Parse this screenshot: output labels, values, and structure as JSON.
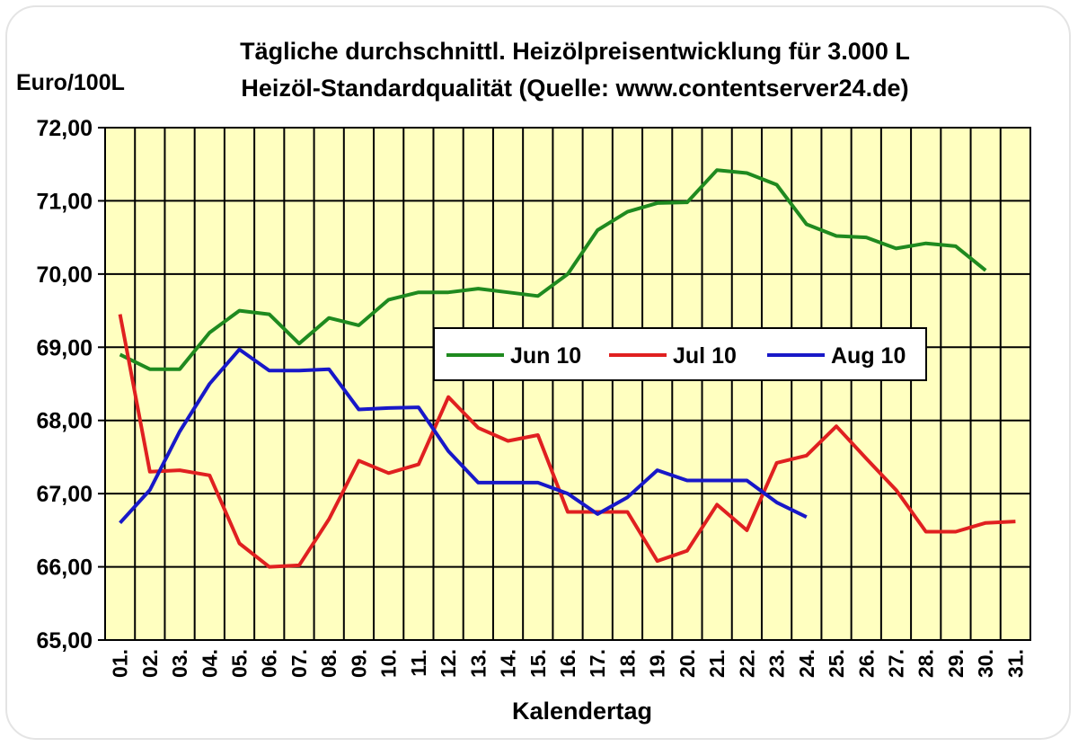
{
  "chart_data": {
    "type": "line",
    "title": "Tägliche durchschnittl. Heizölpreisentwicklung für 3.000 L",
    "subtitle": "Heizöl-Standardqualität (Quelle: www.contentserver24.de)",
    "ylabel": "Euro/100L",
    "xlabel": "Kalendertag",
    "ylim": [
      65,
      72
    ],
    "yticks": [
      "65,00",
      "66,00",
      "67,00",
      "68,00",
      "69,00",
      "70,00",
      "71,00",
      "72,00"
    ],
    "categories": [
      "01.",
      "02.",
      "03.",
      "04.",
      "05.",
      "06.",
      "07.",
      "08.",
      "09.",
      "10.",
      "11.",
      "12.",
      "13.",
      "14.",
      "15.",
      "16.",
      "17.",
      "18.",
      "19.",
      "20.",
      "21.",
      "22.",
      "23.",
      "24.",
      "25.",
      "26.",
      "27.",
      "28.",
      "29.",
      "30.",
      "31."
    ],
    "grid": true,
    "legend_position": "center-right",
    "series": [
      {
        "name": "Jun 10",
        "color": "#1f8a1f",
        "values": [
          68.9,
          68.7,
          68.7,
          69.2,
          69.5,
          69.45,
          69.05,
          69.4,
          69.3,
          69.65,
          69.75,
          69.75,
          69.8,
          69.75,
          69.7,
          70.0,
          70.6,
          70.85,
          70.97,
          70.98,
          71.42,
          71.38,
          71.22,
          70.68,
          70.52,
          70.5,
          70.35,
          70.42,
          70.38,
          70.05,
          null
        ]
      },
      {
        "name": "Jul 10",
        "color": "#e02020",
        "values": [
          69.45,
          67.3,
          67.32,
          67.25,
          66.32,
          66.0,
          66.02,
          66.65,
          67.45,
          67.28,
          67.4,
          68.32,
          67.9,
          67.72,
          67.8,
          66.75,
          66.75,
          66.75,
          66.08,
          66.22,
          66.85,
          66.5,
          67.42,
          67.52,
          67.92,
          67.48,
          67.05,
          66.48,
          66.48,
          66.6,
          66.62
        ]
      },
      {
        "name": "Aug 10",
        "color": "#1818c8",
        "values": [
          66.6,
          67.05,
          67.85,
          68.5,
          68.97,
          68.68,
          68.68,
          68.7,
          68.15,
          68.17,
          68.18,
          67.58,
          67.15,
          67.15,
          67.15,
          67.0,
          66.72,
          66.95,
          67.32,
          67.18,
          67.18,
          67.18,
          66.88,
          66.68,
          null,
          null,
          null,
          null,
          null,
          null,
          null
        ]
      }
    ]
  }
}
